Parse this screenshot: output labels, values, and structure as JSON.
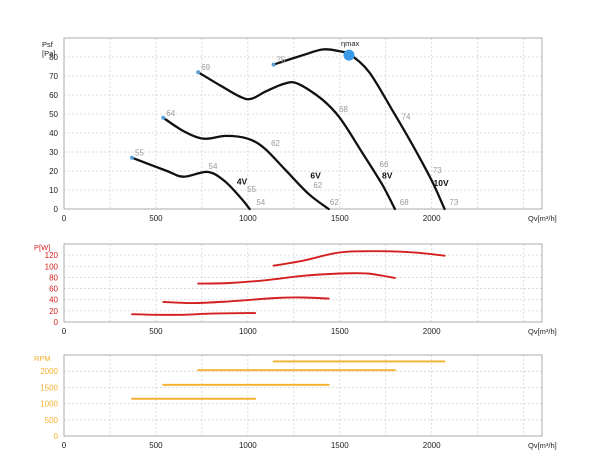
{
  "chart_data": [
    {
      "type": "line",
      "ylabel_top": "Psf",
      "ylabel": "[Pa]",
      "xlabel": "Qv[m³/h]",
      "xlim": [
        0,
        2600
      ],
      "ylim": [
        0,
        90
      ],
      "xticks": [
        "0",
        "500",
        "1000",
        "1500",
        "2000"
      ],
      "xtick_values": [
        0,
        500,
        1000,
        1500,
        2000
      ],
      "yticks": [
        "0",
        "10",
        "20",
        "30",
        "40",
        "50",
        "60",
        "70",
        "80"
      ],
      "ytick_values": [
        0,
        10,
        20,
        30,
        40,
        50,
        60,
        70,
        80
      ],
      "series": [
        {
          "name": "4V",
          "points": [
            [
              370,
              27
            ],
            [
              560,
              20
            ],
            [
              650,
              17
            ],
            [
              780,
              19.5
            ],
            [
              870,
              15
            ],
            [
              960,
              6
            ],
            [
              1010,
              0
            ]
          ]
        },
        {
          "name": "6V",
          "points": [
            [
              540,
              48
            ],
            [
              650,
              41
            ],
            [
              760,
              37
            ],
            [
              880,
              38.5
            ],
            [
              1000,
              37
            ],
            [
              1090,
              32
            ],
            [
              1200,
              21
            ],
            [
              1330,
              8
            ],
            [
              1440,
              0
            ]
          ]
        },
        {
          "name": "8V",
          "points": [
            [
              730,
              72
            ],
            [
              850,
              65
            ],
            [
              960,
              59
            ],
            [
              1020,
              58
            ],
            [
              1100,
              62
            ],
            [
              1200,
              66
            ],
            [
              1270,
              66
            ],
            [
              1400,
              58
            ],
            [
              1500,
              48
            ],
            [
              1620,
              30
            ],
            [
              1730,
              13
            ],
            [
              1800,
              0
            ]
          ]
        },
        {
          "name": "10V",
          "points": [
            [
              1140,
              76
            ],
            [
              1300,
              81
            ],
            [
              1410,
              84
            ],
            [
              1500,
              83
            ],
            [
              1560,
              81
            ],
            [
              1660,
              72
            ],
            [
              1780,
              53
            ],
            [
              1900,
              33
            ],
            [
              2000,
              15
            ],
            [
              2070,
              0
            ]
          ]
        }
      ],
      "markers": [
        [
          370,
          27
        ],
        [
          540,
          48
        ],
        [
          730,
          72
        ],
        [
          1140,
          76
        ]
      ],
      "eta_max": {
        "label": "ηmax",
        "point": [
          1550,
          81
        ]
      },
      "point_labels": [
        {
          "text": "55",
          "at": [
            370,
            27
          ]
        },
        {
          "text": "54",
          "at": [
            770,
            20
          ]
        },
        {
          "text": "55",
          "at": [
            980,
            8
          ]
        },
        {
          "text": "54",
          "at": [
            1030,
            1
          ]
        },
        {
          "text": "64",
          "at": [
            540,
            48
          ]
        },
        {
          "text": "62",
          "at": [
            1110,
            32
          ]
        },
        {
          "text": "62",
          "at": [
            1340,
            10
          ]
        },
        {
          "text": "62",
          "at": [
            1430,
            1
          ]
        },
        {
          "text": "69",
          "at": [
            730,
            72
          ]
        },
        {
          "text": "68",
          "at": [
            1480,
            50
          ]
        },
        {
          "text": "66",
          "at": [
            1700,
            21
          ]
        },
        {
          "text": "68",
          "at": [
            1810,
            1
          ]
        },
        {
          "text": "75",
          "at": [
            1140,
            76
          ]
        },
        {
          "text": "74",
          "at": [
            1820,
            46
          ]
        },
        {
          "text": "73",
          "at": [
            1990,
            18
          ]
        },
        {
          "text": "73",
          "at": [
            2080,
            1
          ]
        }
      ],
      "curve_labels": [
        {
          "text": "4V",
          "at": [
            940,
            13
          ]
        },
        {
          "text": "6V",
          "at": [
            1340,
            16
          ]
        },
        {
          "text": "8V",
          "at": [
            1730,
            16
          ]
        },
        {
          "text": "10V",
          "at": [
            2010,
            12
          ]
        }
      ]
    },
    {
      "type": "line",
      "ylabel": "P[W]",
      "xlabel": "Qv[m³/h]",
      "xlim": [
        0,
        2600
      ],
      "ylim": [
        0,
        140
      ],
      "xticks": [
        "0",
        "500",
        "1000",
        "1500",
        "2000"
      ],
      "xtick_values": [
        0,
        500,
        1000,
        1500,
        2000
      ],
      "yticks": [
        "0",
        "20",
        "40",
        "60",
        "80",
        "100",
        "120"
      ],
      "ytick_values": [
        0,
        20,
        40,
        60,
        80,
        100,
        120
      ],
      "color": "#d42020",
      "series": [
        {
          "name": "4V",
          "points": [
            [
              370,
              14
            ],
            [
              500,
              13
            ],
            [
              650,
              13
            ],
            [
              800,
              15
            ],
            [
              1000,
              16
            ],
            [
              1040,
              16
            ]
          ]
        },
        {
          "name": "6V",
          "points": [
            [
              540,
              36
            ],
            [
              700,
              34
            ],
            [
              900,
              37
            ],
            [
              1150,
              43
            ],
            [
              1300,
              44
            ],
            [
              1440,
              42
            ]
          ]
        },
        {
          "name": "8V",
          "points": [
            [
              730,
              69
            ],
            [
              900,
              70
            ],
            [
              1100,
              75
            ],
            [
              1300,
              83
            ],
            [
              1500,
              87
            ],
            [
              1650,
              87
            ],
            [
              1800,
              79
            ]
          ]
        },
        {
          "name": "10V",
          "points": [
            [
              1140,
              101
            ],
            [
              1300,
              110
            ],
            [
              1500,
              125
            ],
            [
              1700,
              127
            ],
            [
              1900,
              125
            ],
            [
              2070,
              119
            ]
          ]
        }
      ]
    },
    {
      "type": "line",
      "ylabel": "RPM",
      "xlabel": "Qv[m³/h]",
      "xlim": [
        0,
        2600
      ],
      "ylim": [
        0,
        2500
      ],
      "xticks": [
        "0",
        "500",
        "1000",
        "1500",
        "2000"
      ],
      "xtick_values": [
        0,
        500,
        1000,
        1500,
        2000
      ],
      "yticks": [
        "0",
        "500",
        "1000",
        "1500",
        "2000"
      ],
      "ytick_values": [
        0,
        500,
        1000,
        1500,
        2000
      ],
      "color": "#f5b02e",
      "series": [
        {
          "name": "4V",
          "points": [
            [
              370,
              1150
            ],
            [
              1040,
              1150
            ]
          ]
        },
        {
          "name": "6V",
          "points": [
            [
              540,
              1580
            ],
            [
              1440,
              1580
            ]
          ]
        },
        {
          "name": "8V",
          "points": [
            [
              730,
              2030
            ],
            [
              1800,
              2030
            ]
          ]
        },
        {
          "name": "10V",
          "points": [
            [
              1140,
              2300
            ],
            [
              2070,
              2300
            ]
          ]
        }
      ]
    }
  ],
  "colors": {
    "curve": "#111111",
    "marker": "#5aa0d8",
    "eta": "#3b9ae8",
    "power": "#d42020",
    "rpm": "#f5b02e",
    "grid": "#d4d4d4"
  }
}
